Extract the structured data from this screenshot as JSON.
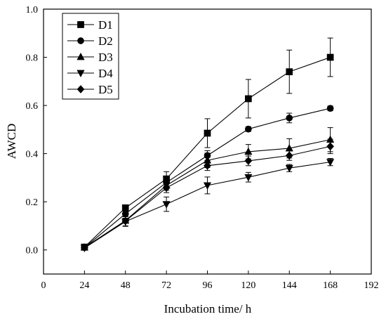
{
  "chart_data": {
    "type": "line",
    "title": "",
    "xlabel": "Incubation time/ h",
    "ylabel": "AWCD",
    "xlim": [
      0,
      192
    ],
    "ylim": [
      -0.1,
      1.0
    ],
    "xticks": [
      0,
      24,
      48,
      72,
      96,
      120,
      144,
      168,
      192
    ],
    "yticks": [
      0.0,
      0.2,
      0.4,
      0.6,
      0.8,
      1.0
    ],
    "x": [
      24,
      48,
      72,
      96,
      120,
      144,
      168
    ],
    "legend_position": "top-left",
    "series": [
      {
        "name": "D1",
        "marker": "square",
        "values": [
          0.012,
          0.175,
          0.295,
          0.485,
          0.628,
          0.74,
          0.8
        ],
        "errors": [
          0.005,
          0.01,
          0.03,
          0.06,
          0.08,
          0.09,
          0.08
        ]
      },
      {
        "name": "D2",
        "marker": "circle",
        "values": [
          0.01,
          0.15,
          0.28,
          0.392,
          0.502,
          0.548,
          0.588
        ],
        "errors": [
          0.005,
          0.01,
          0.02,
          0.02,
          0.01,
          0.02,
          0.01
        ]
      },
      {
        "name": "D3",
        "marker": "triangle-up",
        "values": [
          0.01,
          0.122,
          0.268,
          0.372,
          0.408,
          0.422,
          0.458
        ],
        "errors": [
          0.005,
          0.01,
          0.02,
          0.03,
          0.03,
          0.04,
          0.05
        ]
      },
      {
        "name": "D4",
        "marker": "triangle-down",
        "values": [
          0.008,
          0.118,
          0.19,
          0.268,
          0.302,
          0.34,
          0.365
        ],
        "errors": [
          0.005,
          0.02,
          0.03,
          0.035,
          0.02,
          0.015,
          0.015
        ]
      },
      {
        "name": "D5",
        "marker": "diamond",
        "values": [
          0.01,
          0.12,
          0.258,
          0.35,
          0.37,
          0.392,
          0.43
        ],
        "errors": [
          0.005,
          0.02,
          0.02,
          0.02,
          0.02,
          0.02,
          0.03
        ]
      }
    ]
  }
}
